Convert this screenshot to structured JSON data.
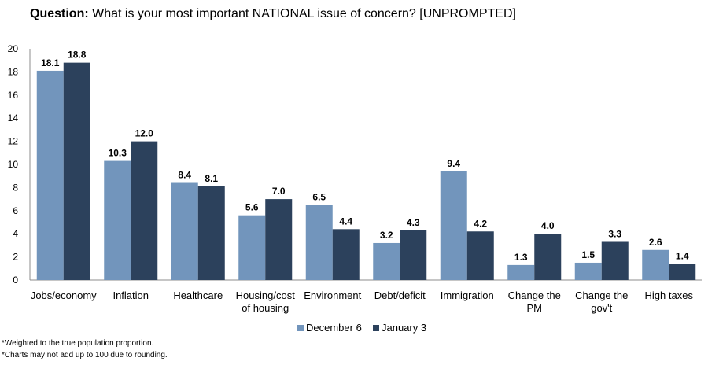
{
  "title": {
    "prefix": "Question:",
    "text": "What is your most important NATIONAL issue of concern? [UNPROMPTED]"
  },
  "chart_data": {
    "type": "bar",
    "categories": [
      [
        "Jobs/economy"
      ],
      [
        "Inflation"
      ],
      [
        "Healthcare"
      ],
      [
        "Housing/cost",
        "of housing"
      ],
      [
        "Environment"
      ],
      [
        "Debt/deficit"
      ],
      [
        "Immigration"
      ],
      [
        "Change the",
        "PM"
      ],
      [
        "Change the",
        "gov't"
      ],
      [
        "High taxes"
      ]
    ],
    "series": [
      {
        "name": "December 6",
        "color": "#7295BC",
        "values": [
          18.1,
          10.3,
          8.4,
          5.6,
          6.5,
          3.2,
          9.4,
          1.3,
          1.5,
          2.6
        ]
      },
      {
        "name": "January 3",
        "color": "#2C415C",
        "values": [
          18.8,
          12.0,
          8.1,
          7.0,
          4.4,
          4.3,
          4.2,
          4.0,
          3.3,
          1.4
        ]
      }
    ],
    "ylim": [
      0,
      20
    ],
    "yticks": [
      0,
      2,
      4,
      6,
      8,
      10,
      12,
      14,
      16,
      18,
      20
    ],
    "legend_position": "bottom-center",
    "xlabel": "",
    "ylabel": ""
  },
  "footnotes": [
    "*Weighted to the true population proportion.",
    "*Charts may not add up to 100 due to rounding."
  ]
}
